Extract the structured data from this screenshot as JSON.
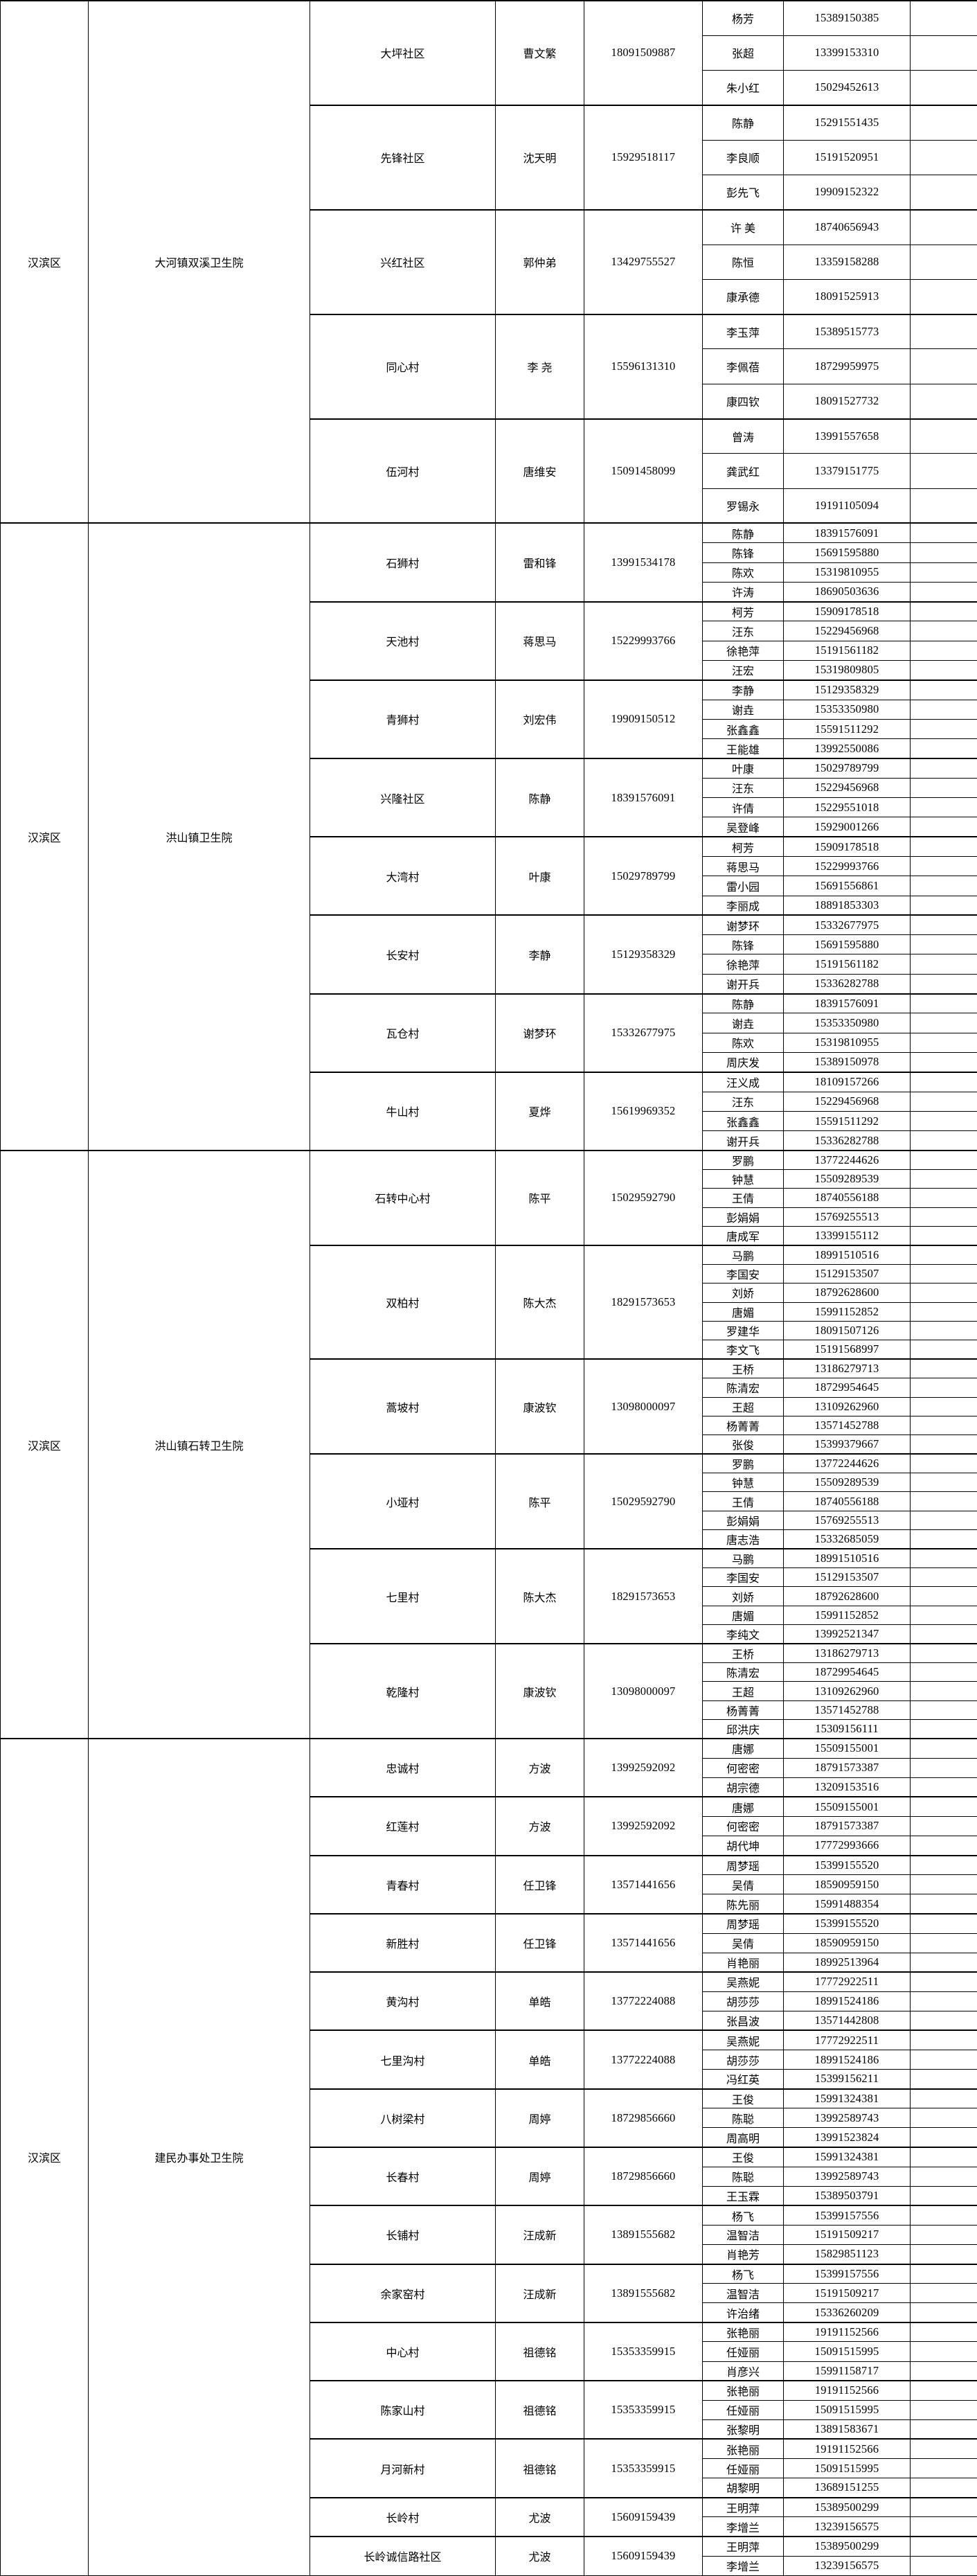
{
  "colors": {
    "background": "#ffffff",
    "border": "#000000",
    "text": "#000000"
  },
  "table": {
    "groups": [
      {
        "district": "汉滨区",
        "hospital": "大河镇双溪卫生院",
        "villages": [
          {
            "name": "大坪社区",
            "leader": "曹文繁",
            "phone": "18091509887",
            "contacts": [
              {
                "name": "杨芳",
                "phone": "15389150385"
              },
              {
                "name": "张超",
                "phone": "13399153310"
              },
              {
                "name": "朱小红",
                "phone": "15029452613"
              }
            ]
          },
          {
            "name": "先锋社区",
            "leader": "沈天明",
            "phone": "15929518117",
            "contacts": [
              {
                "name": "陈静",
                "phone": "15291551435"
              },
              {
                "name": "李良顺",
                "phone": "15191520951"
              },
              {
                "name": "彭先飞",
                "phone": "19909152322"
              }
            ]
          },
          {
            "name": "兴红社区",
            "leader": "郭仲弟",
            "phone": "13429755527",
            "contacts": [
              {
                "name": "许 美",
                "phone": "18740656943"
              },
              {
                "name": "陈恒",
                "phone": "13359158288"
              },
              {
                "name": "康承德",
                "phone": "18091525913"
              }
            ]
          },
          {
            "name": "同心村",
            "leader": "李 尧",
            "phone": "15596131310",
            "contacts": [
              {
                "name": "李玉萍",
                "phone": "15389515773"
              },
              {
                "name": "李佩蓓",
                "phone": "18729959975"
              },
              {
                "name": "康四钦",
                "phone": "18091527732"
              }
            ]
          },
          {
            "name": "伍河村",
            "leader": "唐维安",
            "phone": "15091458099",
            "contacts": [
              {
                "name": "曾涛",
                "phone": "13991557658"
              },
              {
                "name": "龚武红",
                "phone": "13379151775"
              },
              {
                "name": "罗锡永",
                "phone": "19191105094"
              }
            ]
          }
        ]
      },
      {
        "district": "汉滨区",
        "hospital": "洪山镇卫生院",
        "villages": [
          {
            "name": "石狮村",
            "leader": "雷和锋",
            "phone": "13991534178",
            "contacts": [
              {
                "name": "陈静",
                "phone": "18391576091"
              },
              {
                "name": "陈锋",
                "phone": "15691595880"
              },
              {
                "name": "陈欢",
                "phone": "15319810955"
              },
              {
                "name": "许涛",
                "phone": "18690503636"
              }
            ]
          },
          {
            "name": "天池村",
            "leader": "蒋思马",
            "phone": "15229993766",
            "contacts": [
              {
                "name": "柯芳",
                "phone": "15909178518"
              },
              {
                "name": "汪东",
                "phone": "15229456968"
              },
              {
                "name": "徐艳萍",
                "phone": "15191561182"
              },
              {
                "name": "汪宏",
                "phone": "15319809805"
              }
            ]
          },
          {
            "name": "青狮村",
            "leader": "刘宏伟",
            "phone": "19909150512",
            "contacts": [
              {
                "name": "李静",
                "phone": "15129358329"
              },
              {
                "name": "谢垚",
                "phone": "15353350980"
              },
              {
                "name": "张鑫鑫",
                "phone": "15591511292"
              },
              {
                "name": "王能雄",
                "phone": "13992550086"
              }
            ]
          },
          {
            "name": "兴隆社区",
            "leader": "陈静",
            "phone": "18391576091",
            "contacts": [
              {
                "name": "叶康",
                "phone": "15029789799"
              },
              {
                "name": "汪东",
                "phone": "15229456968"
              },
              {
                "name": "许倩",
                "phone": "15229551018"
              },
              {
                "name": "吴登峰",
                "phone": "15929001266"
              }
            ]
          },
          {
            "name": "大湾村",
            "leader": "叶康",
            "phone": "15029789799",
            "contacts": [
              {
                "name": "柯芳",
                "phone": "15909178518"
              },
              {
                "name": "蒋思马",
                "phone": "15229993766"
              },
              {
                "name": "雷小园",
                "phone": "15691556861"
              },
              {
                "name": "李丽成",
                "phone": "18891853303"
              }
            ]
          },
          {
            "name": "长安村",
            "leader": "李静",
            "phone": "15129358329",
            "contacts": [
              {
                "name": "谢梦环",
                "phone": "15332677975"
              },
              {
                "name": "陈锋",
                "phone": "15691595880"
              },
              {
                "name": "徐艳萍",
                "phone": "15191561182"
              },
              {
                "name": "谢开兵",
                "phone": "15336282788"
              }
            ]
          },
          {
            "name": "瓦仓村",
            "leader": "谢梦环",
            "phone": "15332677975",
            "contacts": [
              {
                "name": "陈静",
                "phone": "18391576091"
              },
              {
                "name": "谢垚",
                "phone": "15353350980"
              },
              {
                "name": "陈欢",
                "phone": "15319810955"
              },
              {
                "name": "周庆发",
                "phone": "15389150978"
              }
            ]
          },
          {
            "name": "牛山村",
            "leader": "夏烨",
            "phone": "15619969352",
            "contacts": [
              {
                "name": "汪义成",
                "phone": "18109157266"
              },
              {
                "name": "汪东",
                "phone": "15229456968"
              },
              {
                "name": "张鑫鑫",
                "phone": "15591511292"
              },
              {
                "name": "谢开兵",
                "phone": "15336282788"
              }
            ]
          }
        ]
      },
      {
        "district": "汉滨区",
        "hospital": "洪山镇石转卫生院",
        "villages": [
          {
            "name": "石转中心村",
            "leader": "陈平",
            "phone": "15029592790",
            "contacts": [
              {
                "name": "罗鹏",
                "phone": "13772244626"
              },
              {
                "name": "钟慧",
                "phone": "15509289539"
              },
              {
                "name": "王倩",
                "phone": "18740556188"
              },
              {
                "name": "彭娟娟",
                "phone": "15769255513"
              },
              {
                "name": "唐成军",
                "phone": "13399155112"
              }
            ]
          },
          {
            "name": "双柏村",
            "leader": "陈大杰",
            "phone": "18291573653",
            "contacts": [
              {
                "name": "马鹏",
                "phone": "18991510516"
              },
              {
                "name": "李国安",
                "phone": "15129153507"
              },
              {
                "name": "刘娇",
                "phone": "18792628600"
              },
              {
                "name": "唐媚",
                "phone": "15991152852"
              },
              {
                "name": "罗建华",
                "phone": "18091507126"
              },
              {
                "name": "李文飞",
                "phone": "15191568997"
              }
            ]
          },
          {
            "name": "蒿坡村",
            "leader": "康波钦",
            "phone": "13098000097",
            "contacts": [
              {
                "name": "王桥",
                "phone": "13186279713"
              },
              {
                "name": "陈清宏",
                "phone": "18729954645"
              },
              {
                "name": "王超",
                "phone": "13109262960"
              },
              {
                "name": "杨菁菁",
                "phone": "13571452788"
              },
              {
                "name": "张俊",
                "phone": "15399379667"
              }
            ]
          },
          {
            "name": "小垭村",
            "leader": "陈平",
            "phone": "15029592790",
            "contacts": [
              {
                "name": "罗鹏",
                "phone": "13772244626"
              },
              {
                "name": "钟慧",
                "phone": "15509289539"
              },
              {
                "name": "王倩",
                "phone": "18740556188"
              },
              {
                "name": "彭娟娟",
                "phone": "15769255513"
              },
              {
                "name": "唐志浩",
                "phone": "15332685059"
              }
            ]
          },
          {
            "name": "七里村",
            "leader": "陈大杰",
            "phone": "18291573653",
            "contacts": [
              {
                "name": "马鹏",
                "phone": "18991510516"
              },
              {
                "name": "李国安",
                "phone": "15129153507"
              },
              {
                "name": "刘娇",
                "phone": "18792628600"
              },
              {
                "name": "唐媚",
                "phone": "15991152852"
              },
              {
                "name": "李纯文",
                "phone": "13992521347"
              }
            ]
          },
          {
            "name": "乾隆村",
            "leader": "康波钦",
            "phone": "13098000097",
            "contacts": [
              {
                "name": "王桥",
                "phone": "13186279713"
              },
              {
                "name": "陈清宏",
                "phone": "18729954645"
              },
              {
                "name": "王超",
                "phone": "13109262960"
              },
              {
                "name": "杨菁菁",
                "phone": "13571452788"
              },
              {
                "name": "邱洪庆",
                "phone": "15309156111"
              }
            ]
          }
        ]
      },
      {
        "district": "汉滨区",
        "hospital": "建民办事处卫生院",
        "villages": [
          {
            "name": "忠诚村",
            "leader": "方波",
            "phone": "13992592092",
            "contacts": [
              {
                "name": "唐娜",
                "phone": "15509155001"
              },
              {
                "name": "何密密",
                "phone": "18791573387"
              },
              {
                "name": "胡宗德",
                "phone": "13209153516"
              }
            ]
          },
          {
            "name": "红莲村",
            "leader": "方波",
            "phone": "13992592092",
            "contacts": [
              {
                "name": "唐娜",
                "phone": "15509155001"
              },
              {
                "name": "何密密",
                "phone": "18791573387"
              },
              {
                "name": "胡代坤",
                "phone": "17772993666"
              }
            ]
          },
          {
            "name": "青春村",
            "leader": "任卫锋",
            "phone": "13571441656",
            "contacts": [
              {
                "name": "周梦瑶",
                "phone": "15399155520"
              },
              {
                "name": "吴倩",
                "phone": "18590959150"
              },
              {
                "name": "陈先丽",
                "phone": "15991488354"
              }
            ]
          },
          {
            "name": "新胜村",
            "leader": "任卫锋",
            "phone": "13571441656",
            "contacts": [
              {
                "name": "周梦瑶",
                "phone": "15399155520"
              },
              {
                "name": "吴倩",
                "phone": "18590959150"
              },
              {
                "name": "肖艳丽",
                "phone": "18992513964"
              }
            ]
          },
          {
            "name": "黄沟村",
            "leader": "单皓",
            "phone": "13772224088",
            "contacts": [
              {
                "name": "吴燕妮",
                "phone": "17772922511"
              },
              {
                "name": "胡莎莎",
                "phone": "18991524186"
              },
              {
                "name": "张昌波",
                "phone": "13571442808"
              }
            ]
          },
          {
            "name": "七里沟村",
            "leader": "单皓",
            "phone": "13772224088",
            "contacts": [
              {
                "name": "吴燕妮",
                "phone": "17772922511"
              },
              {
                "name": "胡莎莎",
                "phone": "18991524186"
              },
              {
                "name": "冯红英",
                "phone": "15399156211"
              }
            ]
          },
          {
            "name": "八树梁村",
            "leader": "周婷",
            "phone": "18729856660",
            "contacts": [
              {
                "name": "王俊",
                "phone": "15991324381"
              },
              {
                "name": "陈聪",
                "phone": "13992589743"
              },
              {
                "name": "周高明",
                "phone": "13991523824"
              }
            ]
          },
          {
            "name": "长春村",
            "leader": "周婷",
            "phone": "18729856660",
            "contacts": [
              {
                "name": "王俊",
                "phone": "15991324381"
              },
              {
                "name": "陈聪",
                "phone": "13992589743"
              },
              {
                "name": "王玉霖",
                "phone": "15389503791"
              }
            ]
          },
          {
            "name": "长铺村",
            "leader": "汪成新",
            "phone": "13891555682",
            "contacts": [
              {
                "name": "杨飞",
                "phone": "15399157556"
              },
              {
                "name": "温智洁",
                "phone": "15191509217"
              },
              {
                "name": "肖艳芳",
                "phone": "15829851123"
              }
            ]
          },
          {
            "name": "余家窑村",
            "leader": "汪成新",
            "phone": "13891555682",
            "contacts": [
              {
                "name": "杨飞",
                "phone": "15399157556"
              },
              {
                "name": "温智洁",
                "phone": "15191509217"
              },
              {
                "name": "许治绪",
                "phone": "15336260209"
              }
            ]
          },
          {
            "name": "中心村",
            "leader": "祖德铭",
            "phone": "15353359915",
            "contacts": [
              {
                "name": "张艳丽",
                "phone": "19191152566"
              },
              {
                "name": "任娅丽",
                "phone": "15091515995"
              },
              {
                "name": "肖彦兴",
                "phone": "15991158717"
              }
            ]
          },
          {
            "name": "陈家山村",
            "leader": "祖德铭",
            "phone": "15353359915",
            "contacts": [
              {
                "name": "张艳丽",
                "phone": "19191152566"
              },
              {
                "name": "任娅丽",
                "phone": "15091515995"
              },
              {
                "name": "张黎明",
                "phone": "13891583671"
              }
            ]
          },
          {
            "name": "月河新村",
            "leader": "祖德铭",
            "phone": "15353359915",
            "contacts": [
              {
                "name": "张艳丽",
                "phone": "19191152566"
              },
              {
                "name": "任娅丽",
                "phone": "15091515995"
              },
              {
                "name": "胡黎明",
                "phone": "13689151255"
              }
            ]
          },
          {
            "name": "长岭村",
            "leader": "尤波",
            "phone": "15609159439",
            "contacts": [
              {
                "name": "王明萍",
                "phone": "15389500299"
              },
              {
                "name": "李增兰",
                "phone": "13239156575"
              }
            ]
          },
          {
            "name": "长岭诚信路社区",
            "leader": "尤波",
            "phone": "15609159439",
            "contacts": [
              {
                "name": "王明萍",
                "phone": "15389500299"
              },
              {
                "name": "李增兰",
                "phone": "13239156575"
              }
            ]
          }
        ]
      }
    ]
  }
}
